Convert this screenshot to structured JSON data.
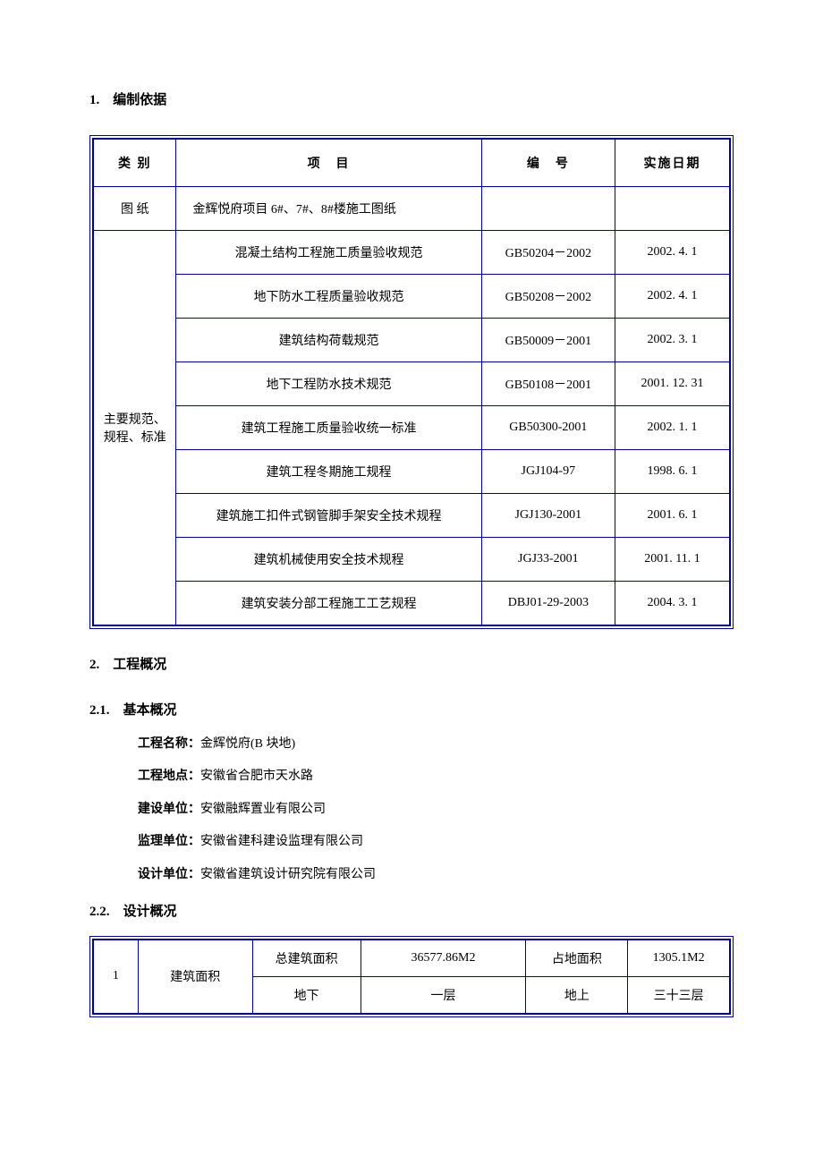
{
  "colors": {
    "table_border": "#0000a0",
    "text": "#000000",
    "background": "#ffffff"
  },
  "sections": {
    "s1": {
      "heading": "1.　编制依据"
    },
    "s2": {
      "heading": "2.　工程概况"
    },
    "s2_1": {
      "heading": "2.1.　基本概况"
    },
    "s2_2": {
      "heading": "2.2.　设计概况"
    }
  },
  "table1": {
    "columns": {
      "category": "类 别",
      "item": "项　目",
      "code": "编　号",
      "date": "实施日期"
    },
    "drawings_row": {
      "category": "图 纸",
      "item": "金辉悦府项目 6#、7#、8#楼施工图纸",
      "code": "",
      "date": ""
    },
    "spec_category": "主要规范、规程、标准",
    "spec_rows": [
      {
        "item": "混凝土结构工程施工质量验收规范",
        "code": "GB50204－2002",
        "date": "2002. 4. 1"
      },
      {
        "item": "地下防水工程质量验收规范",
        "code": "GB50208－2002",
        "date": "2002. 4. 1"
      },
      {
        "item": "建筑结构荷载规范",
        "code": "GB50009－2001",
        "date": "2002. 3. 1"
      },
      {
        "item": "地下工程防水技术规范",
        "code": "GB50108－2001",
        "date": "2001. 12. 31"
      },
      {
        "item": "建筑工程施工质量验收统一标准",
        "code": "GB50300-2001",
        "date": "2002. 1. 1"
      },
      {
        "item": "建筑工程冬期施工规程",
        "code": "JGJ104-97",
        "date": "1998. 6. 1"
      },
      {
        "item": "建筑施工扣件式钢管脚手架安全技术规程",
        "code": "JGJ130-2001",
        "date": "2001. 6. 1"
      },
      {
        "item": "建筑机械使用安全技术规程",
        "code": "JGJ33-2001",
        "date": "2001. 11. 1"
      },
      {
        "item": "建筑安装分部工程施工工艺规程",
        "code": "DBJ01-29-2003",
        "date": "2004. 3. 1"
      }
    ]
  },
  "project_info": {
    "name": {
      "label": "工程名称：",
      "value": "金辉悦府(B 块地)"
    },
    "loc": {
      "label": "工程地点：",
      "value": "安徽省合肥市天水路"
    },
    "owner": {
      "label": "建设单位：",
      "value": "安徽融辉置业有限公司"
    },
    "super": {
      "label": "监理单位：",
      "value": "安徽省建科建设监理有限公司"
    },
    "design": {
      "label": "设计单位：",
      "value": "安徽省建筑设计研究院有限公司"
    }
  },
  "table2": {
    "idx": "1",
    "row_label": "建筑面积",
    "r1": {
      "c3": "总建筑面积",
      "c4": "36577.86M2",
      "c5": "占地面积",
      "c6": "1305.1M2"
    },
    "r2": {
      "c3": "地下",
      "c4": "一层",
      "c5": "地上",
      "c6": "三十三层"
    }
  }
}
